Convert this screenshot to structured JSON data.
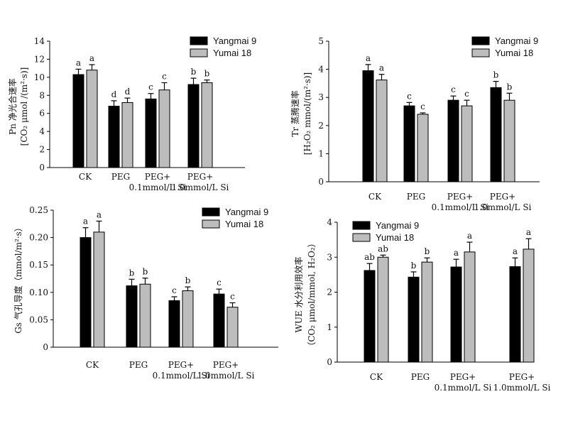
{
  "chart_data": [
    {
      "type": "bar",
      "ylabel": "Pn 净光合速率 [CO2 μmol/(m²·s)]",
      "ylabel_lines": [
        "Pn 净光合速率",
        "[CO₂ μmol /(m²·s)]"
      ],
      "ylim": [
        0,
        14
      ],
      "ticks": [
        0,
        2,
        4,
        6,
        8,
        10,
        12,
        14
      ],
      "categories": [
        "CK",
        "PEG",
        "PEG+ 0.1mmol/L Si",
        "PEG+ 1.0mmol/L Si"
      ],
      "category_lines": [
        [
          "CK"
        ],
        [
          "PEG"
        ],
        [
          "PEG+",
          "0.1mmol/L Si"
        ],
        [
          "PEG+",
          "1.0mmol/L Si"
        ]
      ],
      "legend_placement": "top-right",
      "series": [
        {
          "name": "Yangmai 9",
          "color": "#000000",
          "values": [
            10.3,
            6.8,
            7.6,
            9.2
          ],
          "errors": [
            0.6,
            0.6,
            0.6,
            0.7
          ],
          "letters": [
            "a",
            "d",
            "c",
            "b"
          ]
        },
        {
          "name": "Yumai 18",
          "color": "#bdbdbd",
          "values": [
            10.8,
            7.2,
            8.6,
            9.4
          ],
          "errors": [
            0.6,
            0.5,
            0.8,
            0.3
          ],
          "letters": [
            "a",
            "d",
            "c",
            "b"
          ]
        }
      ]
    },
    {
      "type": "bar",
      "ylabel": "Tr 蒸腾速率 [H2O2 mmol/(m²·s)]",
      "ylabel_lines": [
        "Tr 蒸腾速率",
        "[H₂O₂ mmol/(m²·s)]"
      ],
      "ylim": [
        0,
        5
      ],
      "ticks": [
        0,
        1,
        2,
        3,
        4,
        5
      ],
      "categories": [
        "CK",
        "PEG",
        "PEG+ 0.1mmol/L Si",
        "PEG+ 1.0mmol/L Si"
      ],
      "category_lines": [
        [
          "CK"
        ],
        [
          "PEG"
        ],
        [
          "PEG+",
          "0.1mmol/L Si"
        ],
        [
          "PEG+",
          "1.0mmol/L Si"
        ]
      ],
      "legend_placement": "top-right",
      "series": [
        {
          "name": "Yangmai 9",
          "color": "#000000",
          "values": [
            3.95,
            2.7,
            2.9,
            3.35
          ],
          "errors": [
            0.22,
            0.12,
            0.15,
            0.22
          ],
          "letters": [
            "a",
            "c",
            "c",
            "b"
          ]
        },
        {
          "name": "Yumai 18",
          "color": "#bdbdbd",
          "values": [
            3.62,
            2.4,
            2.7,
            2.9
          ],
          "errors": [
            0.2,
            0.05,
            0.2,
            0.25
          ],
          "letters": [
            "a",
            "c",
            "c",
            "b"
          ]
        }
      ]
    },
    {
      "type": "bar",
      "ylabel": "Gs 气孔导度 (mmol/m²·s)",
      "ylabel_lines": [
        "Gs 气孔导度（mmol/m²·s）"
      ],
      "ylim": [
        0,
        0.25
      ],
      "ticks": [
        0,
        0.05,
        0.1,
        0.15,
        0.2,
        0.25
      ],
      "tick_labels": [
        "0",
        "0.05",
        "0.10",
        "0.15",
        "0.20",
        "0.25"
      ],
      "categories": [
        "CK",
        "PEG",
        "PEG+ 0.1mmol/L Si",
        "PEG+ 1.0mmol/L Si"
      ],
      "category_lines": [
        [
          "CK"
        ],
        [
          "PEG"
        ],
        [
          "PEG+",
          "0.1mmol/L Si"
        ],
        [
          "PEG+",
          "1.0mmol/L Si"
        ]
      ],
      "legend_placement": "top-right",
      "series": [
        {
          "name": "Yangmai 9",
          "color": "#000000",
          "values": [
            0.2,
            0.112,
            0.085,
            0.097
          ],
          "errors": [
            0.018,
            0.012,
            0.007,
            0.009
          ],
          "letters": [
            "a",
            "b",
            "c",
            "c"
          ]
        },
        {
          "name": "Yumai 18",
          "color": "#bdbdbd",
          "values": [
            0.21,
            0.115,
            0.103,
            0.073
          ],
          "errors": [
            0.02,
            0.011,
            0.007,
            0.008
          ],
          "letters": [
            "a",
            "b",
            "b",
            "c"
          ]
        }
      ]
    },
    {
      "type": "bar",
      "ylabel": "WUE 水分利用效率 (CO2 μmol/mmol, H2O2)",
      "ylabel_lines": [
        "WUE 水分利用效率",
        "（CO₂ μmol/mmol, H₂O₂）"
      ],
      "ylim": [
        0,
        4
      ],
      "ticks": [
        0,
        1,
        2,
        3,
        4
      ],
      "categories": [
        "CK",
        "PEG",
        "PEG+ 0.1mmol/L Si",
        "PEG+ 1.0mmol/L Si"
      ],
      "category_lines": [
        [
          "CK"
        ],
        [
          "PEG"
        ],
        [
          "PEG+",
          "0.1mmol/L Si"
        ],
        [
          "PEG+",
          "1.0mmol/L Si"
        ]
      ],
      "legend_placement": "top-left",
      "series": [
        {
          "name": "Yangmai 9",
          "color": "#000000",
          "values": [
            2.62,
            2.43,
            2.72,
            2.73
          ],
          "errors": [
            0.2,
            0.15,
            0.22,
            0.25
          ],
          "letters": [
            "ab",
            "b",
            "a",
            "a"
          ]
        },
        {
          "name": "Yumai 18",
          "color": "#bdbdbd",
          "values": [
            3.0,
            2.86,
            3.15,
            3.23
          ],
          "errors": [
            0.06,
            0.12,
            0.28,
            0.3
          ],
          "letters": [
            "ab",
            "b",
            "a",
            "a"
          ]
        }
      ]
    }
  ]
}
